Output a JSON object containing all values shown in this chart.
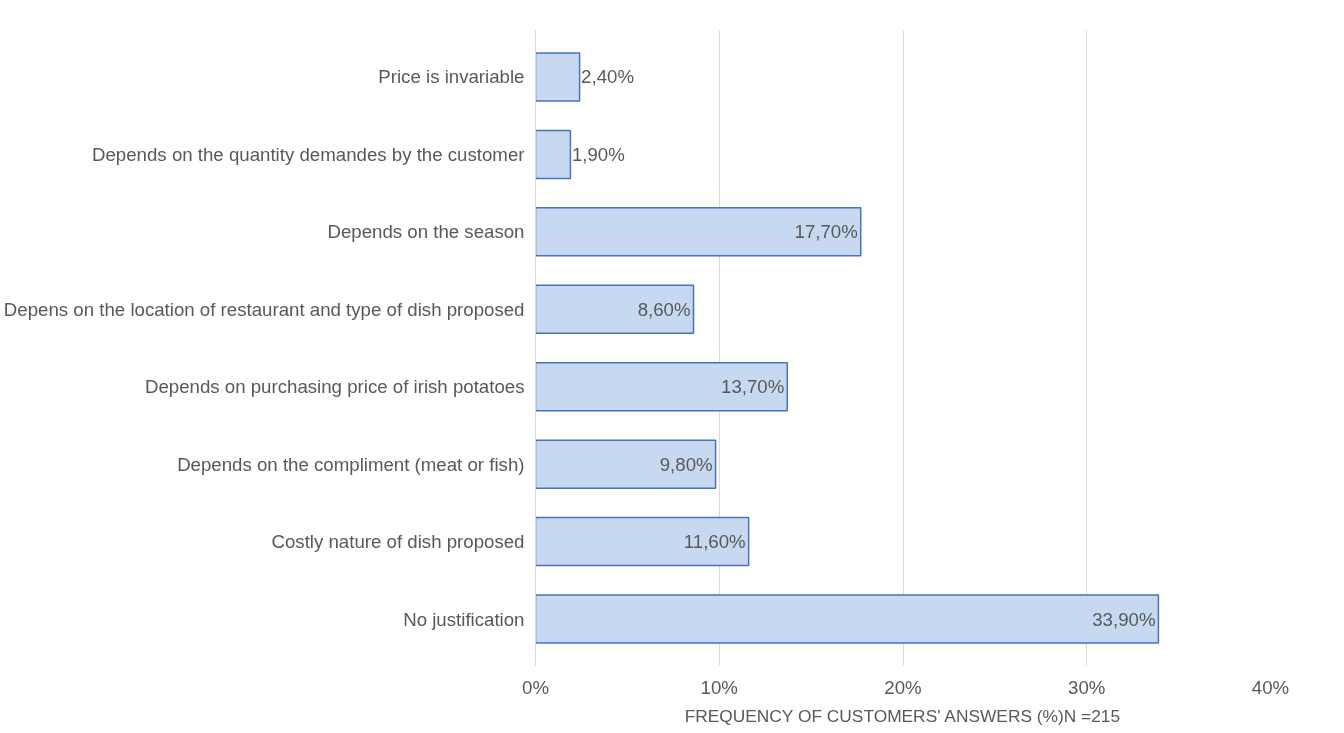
{
  "chart_data": {
    "type": "bar",
    "orientation": "horizontal",
    "xlabel": "FREQUENCY OF CUSTOMERS' ANSWERS (%)N =215",
    "categories": [
      "Price is invariable",
      "Depends on the quantity demandes by the customer",
      "Depends on the season",
      "Depens on the location of restaurant and type of dish proposed",
      "Depends on purchasing price of irish potatoes",
      "Depends on the compliment (meat or fish)",
      "Costly nature of dish proposed",
      "No justification"
    ],
    "values": [
      2.4,
      1.9,
      17.7,
      8.6,
      13.7,
      9.8,
      11.6,
      33.9
    ],
    "value_labels": [
      "2,40%",
      "1,90%",
      "17,70%",
      "8,60%",
      "13,70%",
      "9,80%",
      "11,60%",
      "33,90%"
    ],
    "color": "#c6d9f1",
    "xlim": [
      0,
      40
    ],
    "xticks": [
      {
        "value": 0,
        "label": "0%"
      },
      {
        "value": 10,
        "label": "10%"
      },
      {
        "value": 20,
        "label": "20%"
      },
      {
        "value": 30,
        "label": "30%"
      },
      {
        "value": 40,
        "label": "40%"
      }
    ],
    "grid": "x"
  }
}
